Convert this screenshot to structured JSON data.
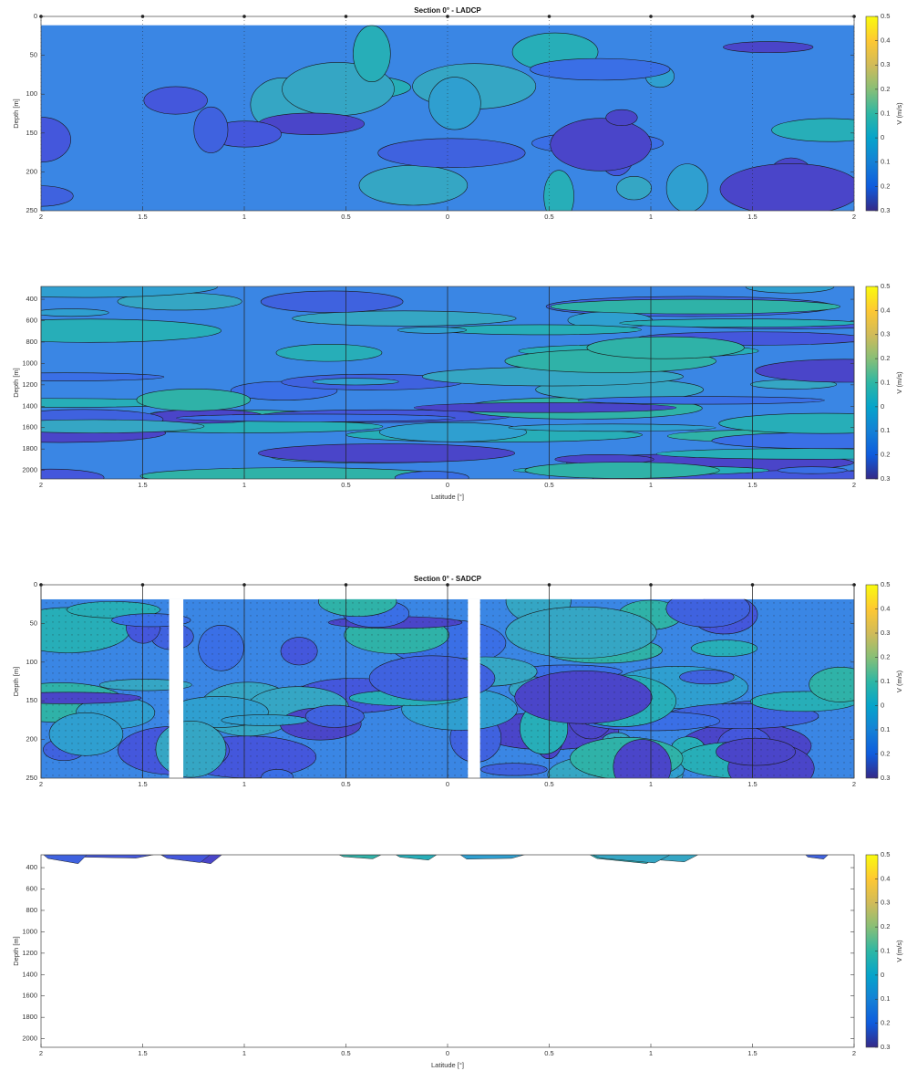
{
  "chart_data": [
    {
      "type": "contour",
      "title": "Section 0° - LADCP",
      "ylabel": "Depth [m]",
      "y_reversed": true,
      "colormap": "parula",
      "xlim": [
        -2,
        2
      ],
      "xticks": [
        {
          "value": -2,
          "label": "2"
        },
        {
          "value": -1.5,
          "label": "1.5"
        },
        {
          "value": -1,
          "label": "1"
        },
        {
          "value": -0.5,
          "label": "0.5"
        },
        0,
        0.5,
        1,
        1.5,
        2
      ],
      "ylim": [
        0,
        250
      ],
      "yticks": [
        0,
        50,
        100,
        150,
        200,
        250
      ],
      "colorbar": {
        "label": "V (m/s)",
        "lim": [
          -0.3,
          0.5
        ],
        "ticks": [
          0.5,
          0.4,
          0.3,
          0.2,
          0.1,
          0,
          {
            "value": -0.1,
            "label": "0.1"
          },
          {
            "value": -0.2,
            "label": "0.2"
          },
          {
            "value": -0.3,
            "label": "0.3"
          }
        ]
      }
    },
    {
      "type": "contour",
      "xlabel": "Latitude [°]",
      "ylabel": "Depth [m]",
      "y_reversed": true,
      "colormap": "parula",
      "xlim": [
        -2,
        2
      ],
      "xticks": [
        {
          "value": -2,
          "label": "2"
        },
        {
          "value": -1.5,
          "label": "1.5"
        },
        {
          "value": -1,
          "label": "1"
        },
        {
          "value": -0.5,
          "label": "0.5"
        },
        0,
        0.5,
        1,
        1.5,
        2
      ],
      "ylim": [
        280,
        2080
      ],
      "yticks": [
        400,
        600,
        800,
        1000,
        1200,
        1400,
        1600,
        1800,
        2000
      ],
      "colorbar": {
        "label": "V (m/s)",
        "lim": [
          -0.3,
          0.5
        ],
        "ticks": [
          0.5,
          0.4,
          0.3,
          0.2,
          0.1,
          0,
          {
            "value": -0.1,
            "label": "0.1"
          },
          {
            "value": -0.2,
            "label": "0.2"
          },
          {
            "value": -0.3,
            "label": "0.3"
          }
        ]
      }
    },
    {
      "type": "contour",
      "title": "Section 0° - SADCP",
      "ylabel": "Depth [m]",
      "y_reversed": true,
      "colormap": "parula",
      "xlim": [
        -2,
        2
      ],
      "xticks": [
        {
          "value": -2,
          "label": "2"
        },
        {
          "value": -1.5,
          "label": "1.5"
        },
        {
          "value": -1,
          "label": "1"
        },
        {
          "value": -0.5,
          "label": "0.5"
        },
        0,
        0.5,
        1,
        1.5,
        2
      ],
      "ylim": [
        0,
        250
      ],
      "yticks": [
        0,
        50,
        100,
        150,
        200,
        250
      ],
      "colorbar": {
        "label": "V (m/s)",
        "lim": [
          -0.3,
          0.5
        ],
        "ticks": [
          0.5,
          0.4,
          0.3,
          0.2,
          0.1,
          0,
          {
            "value": -0.1,
            "label": "0.1"
          },
          {
            "value": -0.2,
            "label": "0.2"
          },
          {
            "value": -0.3,
            "label": "0.3"
          }
        ]
      }
    },
    {
      "type": "contour",
      "xlabel": "Latitude [°]",
      "ylabel": "Depth [m]",
      "y_reversed": true,
      "colormap": "parula",
      "xlim": [
        -2,
        2
      ],
      "xticks": [
        {
          "value": -2,
          "label": "2"
        },
        {
          "value": -1.5,
          "label": "1.5"
        },
        {
          "value": -1,
          "label": "1"
        },
        {
          "value": -0.5,
          "label": "0.5"
        },
        0,
        0.5,
        1,
        1.5,
        2
      ],
      "ylim": [
        280,
        2080
      ],
      "yticks": [
        400,
        600,
        800,
        1000,
        1200,
        1400,
        1600,
        1800,
        2000
      ],
      "colorbar": {
        "label": "V (m/s)",
        "lim": [
          -0.3,
          0.5
        ],
        "ticks": [
          0.5,
          0.4,
          0.3,
          0.2,
          0.1,
          0,
          {
            "value": -0.1,
            "label": "0.1"
          },
          {
            "value": -0.2,
            "label": "0.2"
          },
          {
            "value": -0.3,
            "label": "0.3"
          }
        ]
      }
    }
  ]
}
